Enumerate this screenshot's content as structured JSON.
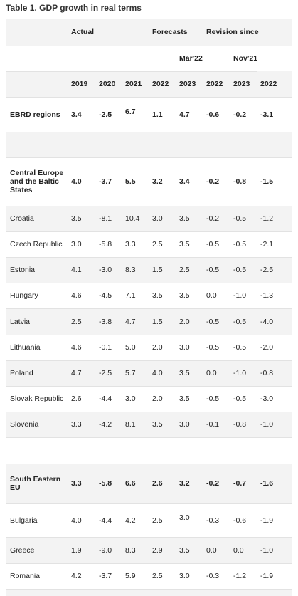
{
  "caption": "Table 1. GDP growth in real terms",
  "header": {
    "groups": {
      "actual": "Actual",
      "forecasts": "Forecasts",
      "revision": "Revision since"
    },
    "subgroups": {
      "mar22": "Mar'22",
      "nov21": "Nov'21"
    },
    "years": [
      "2019",
      "2020",
      "2021",
      "2022",
      "2023",
      "2022",
      "2023",
      "2022"
    ]
  },
  "rows": [
    {
      "label": "EBRD regions",
      "values": [
        "3.4",
        "-2.5",
        "6.7",
        "1.1",
        "4.7",
        "-0.6",
        "-0.2",
        "-3.1"
      ]
    },
    {
      "label": "Central Europe and the Baltic States",
      "values": [
        "4.0",
        "-3.7",
        "5.5",
        "3.2",
        "3.4",
        "-0.2",
        "-0.8",
        "-1.5"
      ]
    },
    {
      "label": "Croatia",
      "values": [
        "3.5",
        "-8.1",
        "10.4",
        "3.0",
        "3.5",
        "-0.2",
        "-0.5",
        "-1.2"
      ]
    },
    {
      "label": "Czech Republic",
      "values": [
        "3.0",
        "-5.8",
        "3.3",
        "2.5",
        "3.5",
        "-0.5",
        "-0.5",
        "-2.1"
      ]
    },
    {
      "label": "Estonia",
      "values": [
        "4.1",
        "-3.0",
        "8.3",
        "1.5",
        "2.5",
        "-0.5",
        "-0.5",
        "-2.5"
      ]
    },
    {
      "label": "Hungary",
      "values": [
        "4.6",
        "-4.5",
        "7.1",
        "3.5",
        "3.5",
        "0.0",
        "-1.0",
        "-1.3"
      ]
    },
    {
      "label": "Latvia",
      "values": [
        "2.5",
        "-3.8",
        "4.7",
        "1.5",
        "2.0",
        "-0.5",
        "-0.5",
        "-4.0"
      ]
    },
    {
      "label": "Lithuania",
      "values": [
        "4.6",
        "-0.1",
        "5.0",
        "2.0",
        "3.0",
        "-0.5",
        "-0.5",
        "-2.0"
      ]
    },
    {
      "label": "Poland",
      "values": [
        "4.7",
        "-2.5",
        "5.7",
        "4.0",
        "3.5",
        "0.0",
        "-1.0",
        "-0.8"
      ]
    },
    {
      "label": "Slovak Republic",
      "values": [
        "2.6",
        "-4.4",
        "3.0",
        "2.0",
        "3.5",
        "-0.5",
        "-0.5",
        "-3.0"
      ]
    },
    {
      "label": "Slovenia",
      "values": [
        "3.3",
        "-4.2",
        "8.1",
        "3.5",
        "3.0",
        "-0.1",
        "-0.8",
        "-1.0"
      ]
    },
    {
      "label": "South Eastern EU",
      "values": [
        "3.3",
        "-5.8",
        "6.6",
        "2.6",
        "3.2",
        "-0.2",
        "-0.7",
        "-1.6"
      ]
    },
    {
      "label": "Bulgaria",
      "values": [
        "4.0",
        "-4.4",
        "4.2",
        "2.5",
        "3.0",
        "-0.3",
        "-0.6",
        "-1.9"
      ]
    },
    {
      "label": "Greece",
      "values": [
        "1.9",
        "-9.0",
        "8.3",
        "2.9",
        "3.5",
        "0.0",
        "0.0",
        "-1.0"
      ]
    },
    {
      "label": "Romania",
      "values": [
        "4.2",
        "-3.7",
        "5.9",
        "2.5",
        "3.0",
        "-0.3",
        "-1.2",
        "-1.9"
      ]
    }
  ]
}
